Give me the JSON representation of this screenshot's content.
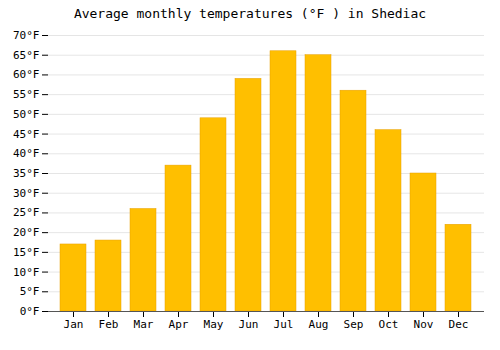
{
  "chart_data": {
    "type": "bar",
    "title": "Average monthly temperatures (°F ) in Shediac",
    "categories": [
      "Jan",
      "Feb",
      "Mar",
      "Apr",
      "May",
      "Jun",
      "Jul",
      "Aug",
      "Sep",
      "Oct",
      "Nov",
      "Dec"
    ],
    "values": [
      17,
      18,
      26,
      37,
      49,
      59,
      66,
      65,
      56,
      46,
      35,
      22
    ],
    "color": "#FFBF00",
    "ylim": [
      0,
      70
    ],
    "yticks": [
      {
        "value": 0,
        "label": "0°F"
      },
      {
        "value": 5,
        "label": "5°F"
      },
      {
        "value": 10,
        "label": "10°F"
      },
      {
        "value": 15,
        "label": "15°F"
      },
      {
        "value": 20,
        "label": "20°F"
      },
      {
        "value": 25,
        "label": "25°F"
      },
      {
        "value": 30,
        "label": "30°F"
      },
      {
        "value": 35,
        "label": "35°F"
      },
      {
        "value": 40,
        "label": "40°F"
      },
      {
        "value": 45,
        "label": "45°F"
      },
      {
        "value": 50,
        "label": "50°F"
      },
      {
        "value": 55,
        "label": "55°F"
      },
      {
        "value": 60,
        "label": "60°F"
      },
      {
        "value": 65,
        "label": "65°F"
      },
      {
        "value": 70,
        "label": "70°F"
      }
    ],
    "grid": true
  }
}
